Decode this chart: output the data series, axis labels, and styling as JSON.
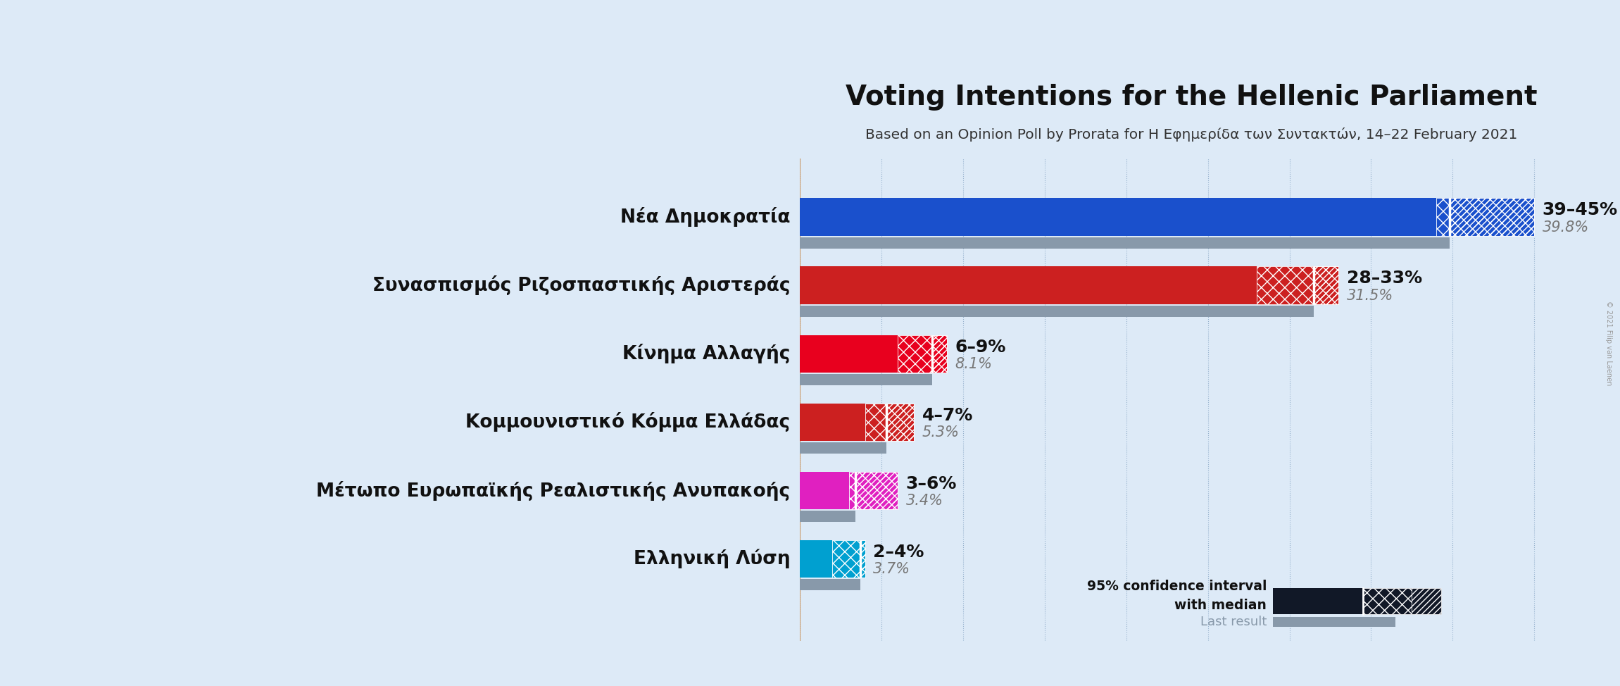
{
  "title": "Voting Intentions for the Hellenic Parliament",
  "subtitle": "Based on an Opinion Poll by Prorata for H Εφημερίδα των Συντακτών, 14–22 February 2021",
  "background_color": "#ddeaf7",
  "parties": [
    {
      "name": "Νέα Δημοκρατία",
      "ci_low": 39,
      "ci_high": 45,
      "median": 39.8,
      "last_result": 39.8,
      "color": "#1a50cc",
      "label": "39–45%",
      "median_label": "39.8%"
    },
    {
      "name": "Συνασπισμός Ριζοσπαστικής Αριστεράς",
      "ci_low": 28,
      "ci_high": 33,
      "median": 31.5,
      "last_result": 31.5,
      "color": "#cc2020",
      "label": "28–33%",
      "median_label": "31.5%"
    },
    {
      "name": "Κίνημα Αλλαγής",
      "ci_low": 6,
      "ci_high": 9,
      "median": 8.1,
      "last_result": 8.1,
      "color": "#e8001e",
      "label": "6–9%",
      "median_label": "8.1%"
    },
    {
      "name": "Κομμουνιστικό Κόμμα Ελλάδας",
      "ci_low": 4,
      "ci_high": 7,
      "median": 5.3,
      "last_result": 5.3,
      "color": "#cc2020",
      "label": "4–7%",
      "median_label": "5.3%"
    },
    {
      "name": "Μέτωπο Ευρωπαϊκής Ρεαλιστικής Ανυπακοής",
      "ci_low": 3,
      "ci_high": 6,
      "median": 3.4,
      "last_result": 3.4,
      "color": "#e020c0",
      "label": "3–6%",
      "median_label": "3.4%"
    },
    {
      "name": "Ελληνική Λύση",
      "ci_low": 2,
      "ci_high": 4,
      "median": 3.7,
      "last_result": 3.7,
      "color": "#00a0d0",
      "label": "2–4%",
      "median_label": "3.7%"
    }
  ],
  "xlim_max": 48,
  "bar_height": 0.55,
  "last_result_color": "#8899aa",
  "grid_color": "#7799bb",
  "legend_ci_color": "#111827",
  "legend_last_color": "#8899aa",
  "title_fontsize": 28,
  "subtitle_fontsize": 14.5,
  "party_fontsize": 19,
  "value_fontsize": 18,
  "median_label_fontsize": 15,
  "copyright_text": "© 2021 Filip van Laenen"
}
